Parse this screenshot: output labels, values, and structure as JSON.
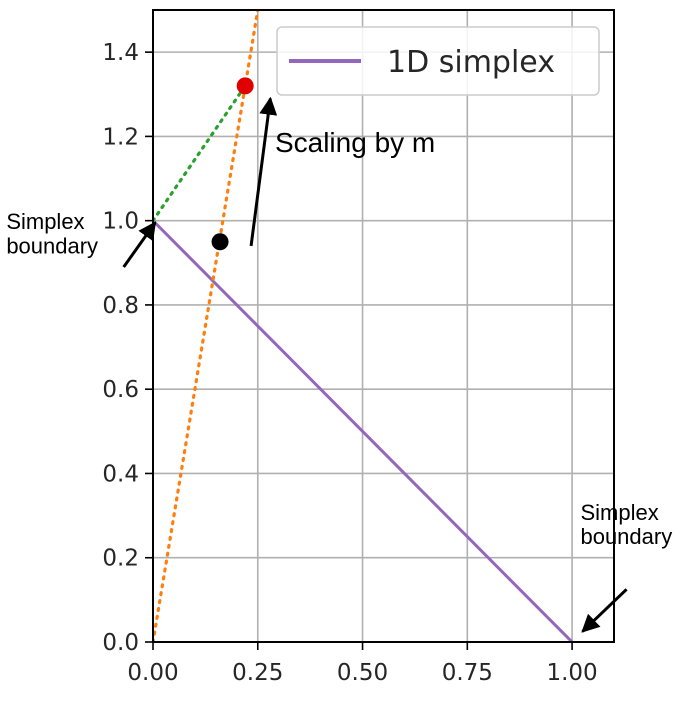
{
  "chart_data": {
    "type": "line",
    "xlim": [
      0.0,
      1.1
    ],
    "ylim": [
      0.0,
      1.5
    ],
    "xticks": [
      "0.00",
      "0.25",
      "0.50",
      "0.75",
      "1.00"
    ],
    "yticks": [
      "0.0",
      "0.2",
      "0.4",
      "0.6",
      "0.8",
      "1.0",
      "1.2",
      "1.4"
    ],
    "grid": true,
    "legend": {
      "placement": "top-right",
      "entries": [
        "1D simplex"
      ]
    },
    "series": [
      {
        "name": "1D simplex",
        "style": "solid",
        "color": "#9467bd",
        "points": [
          [
            0.0,
            1.0
          ],
          [
            1.0,
            0.0
          ]
        ]
      },
      {
        "style": "dotted",
        "color": "#2ca02c",
        "points": [
          [
            0.0,
            1.0
          ],
          [
            0.22,
            1.32
          ]
        ]
      },
      {
        "style": "dotted",
        "color": "#ff7f0e",
        "points": [
          [
            0.0,
            0.0
          ],
          [
            0.25,
            1.5
          ]
        ]
      }
    ],
    "markers": [
      {
        "x": 0.16,
        "y": 0.95,
        "color": "#000000"
      },
      {
        "x": 0.22,
        "y": 1.32,
        "color": "#e00000"
      }
    ],
    "annotations": [
      {
        "text": "Scaling by m",
        "size": 28,
        "anchor": [
          0.291,
          1.163
        ],
        "arrow_from": [
          0.234,
          0.94
        ],
        "arrow_to": [
          0.28,
          1.29
        ]
      },
      {
        "text": "Simplex\nboundary",
        "size": 22,
        "anchor": [
          -0.35,
          0.98
        ],
        "arrow_from": [
          -0.07,
          0.89
        ],
        "arrow_to": [
          0.005,
          0.995
        ]
      },
      {
        "text": "Simplex\nboundary",
        "size": 22,
        "anchor": [
          1.02,
          0.29
        ],
        "arrow_from": [
          1.13,
          0.125
        ],
        "arrow_to": [
          1.025,
          0.025
        ]
      }
    ]
  },
  "colors": {
    "axis": "#000000",
    "grid": "#b0b0b0",
    "legend_border": "#cccccc"
  }
}
